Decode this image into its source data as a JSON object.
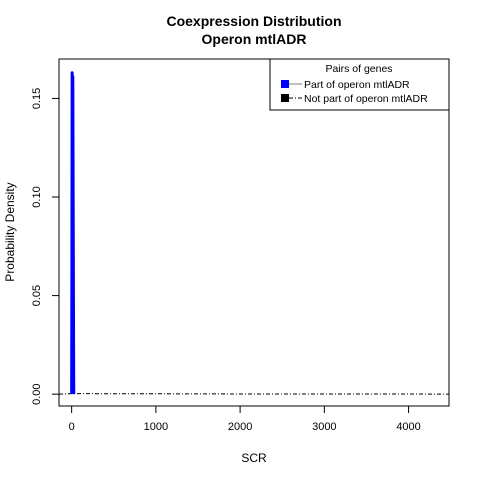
{
  "chart_data": {
    "type": "line",
    "title": [
      "Coexpression Distribution",
      "Operon mtlADR"
    ],
    "xlabel": "SCR",
    "ylabel": "Probability Density",
    "xlim": [
      -150,
      4480
    ],
    "ylim": [
      -0.006,
      0.17
    ],
    "x_ticks": [
      0,
      1000,
      2000,
      3000,
      4000
    ],
    "x_tick_labels": [
      "0",
      "1000",
      "2000",
      "3000",
      "4000"
    ],
    "y_ticks": [
      0.0,
      0.05,
      0.1,
      0.15
    ],
    "y_tick_labels": [
      "0.00",
      "0.05",
      "0.10",
      "0.15"
    ],
    "legend": {
      "title": "Pairs of genes",
      "placement": "top-right",
      "entries": [
        {
          "label": "Part of operon mtlADR",
          "fill": "#0000ff",
          "line_color": "#808080",
          "line_style": "solid"
        },
        {
          "label": "Not part of operon mtlADR",
          "fill": "#000000",
          "line_color": "#000000",
          "line_style": "dotdash"
        }
      ]
    },
    "series": [
      {
        "name": "Part of operon mtlADR",
        "color": "#0000ff",
        "x": [
          0,
          3,
          6,
          10,
          14,
          18,
          22,
          25
        ],
        "y": [
          0.0,
          0.06,
          0.163,
          0.158,
          0.161,
          0.1,
          0.04,
          0.0
        ]
      },
      {
        "name": "Not part of operon mtlADR",
        "color": "#000000",
        "x": [
          -150,
          0,
          500,
          1000,
          2000,
          3000,
          4000,
          4480
        ],
        "y": [
          0.0,
          0.0003,
          0.0002,
          0.0002,
          0.0001,
          0.0001,
          0.0001,
          0.0
        ]
      }
    ]
  }
}
